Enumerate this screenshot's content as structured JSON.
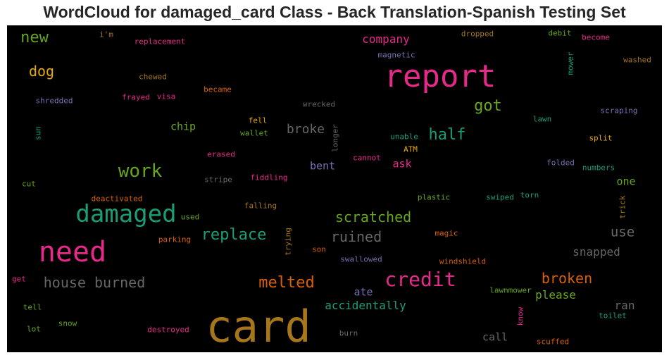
{
  "chart_data": {
    "type": "wordcloud",
    "title": "WordCloud for damaged_card Class - Back Translation-Spanish Testing Set",
    "background": "#000000",
    "words": [
      {
        "text": "card",
        "size": 62,
        "color": "#a6761d"
      },
      {
        "text": "report",
        "size": 44,
        "color": "#e7298a"
      },
      {
        "text": "need",
        "size": 40,
        "color": "#e7298a"
      },
      {
        "text": "damaged",
        "size": 34,
        "color": "#1b9e77"
      },
      {
        "text": "credit",
        "size": 28,
        "color": "#e7298a"
      },
      {
        "text": "work",
        "size": 26,
        "color": "#66a61e"
      },
      {
        "text": "half",
        "size": 22,
        "color": "#1b9e77"
      },
      {
        "text": "got",
        "size": 22,
        "color": "#66a61e"
      },
      {
        "text": "replace",
        "size": 22,
        "color": "#1b9e77"
      },
      {
        "text": "new",
        "size": 22,
        "color": "#66a61e"
      },
      {
        "text": "melted",
        "size": 22,
        "color": "#d95f02"
      },
      {
        "text": "house burned",
        "size": 20,
        "color": "#666666"
      },
      {
        "text": "scratched",
        "size": 20,
        "color": "#66a61e"
      },
      {
        "text": "ruined",
        "size": 20,
        "color": "#666666"
      },
      {
        "text": "broken",
        "size": 20,
        "color": "#d95f02"
      },
      {
        "text": "dog",
        "size": 20,
        "color": "#e6ab02"
      },
      {
        "text": "use",
        "size": 19,
        "color": "#666666"
      },
      {
        "text": "broke",
        "size": 18,
        "color": "#666666"
      },
      {
        "text": "company",
        "size": 16,
        "color": "#e7298a"
      },
      {
        "text": "accidentally",
        "size": 16,
        "color": "#1b9e77"
      },
      {
        "text": "please",
        "size": 16,
        "color": "#66a61e"
      },
      {
        "text": "snapped",
        "size": 16,
        "color": "#666666"
      },
      {
        "text": "ran",
        "size": 16,
        "color": "#666666"
      },
      {
        "text": "chip",
        "size": 15,
        "color": "#66a61e"
      },
      {
        "text": "bent",
        "size": 15,
        "color": "#7570b3"
      },
      {
        "text": "ask",
        "size": 15,
        "color": "#e7298a"
      },
      {
        "text": "one",
        "size": 15,
        "color": "#66a61e"
      },
      {
        "text": "ate",
        "size": 15,
        "color": "#7570b3"
      },
      {
        "text": "call",
        "size": 15,
        "color": "#666666"
      },
      {
        "text": "magnetic",
        "size": 11,
        "color": "#7570b3"
      },
      {
        "text": "dropped",
        "size": 11,
        "color": "#a6761d"
      },
      {
        "text": "debit",
        "size": 11,
        "color": "#66a61e"
      },
      {
        "text": "become",
        "size": 11,
        "color": "#e7298a"
      },
      {
        "text": "washed",
        "size": 11,
        "color": "#a6761d"
      },
      {
        "text": "mower",
        "size": 11,
        "color": "#1b9e77"
      },
      {
        "text": "i'm",
        "size": 11,
        "color": "#a6761d"
      },
      {
        "text": "replacement",
        "size": 11,
        "color": "#e7298a"
      },
      {
        "text": "chewed",
        "size": 11,
        "color": "#a6761d"
      },
      {
        "text": "became",
        "size": 11,
        "color": "#d95f02"
      },
      {
        "text": "shredded",
        "size": 11,
        "color": "#7570b3"
      },
      {
        "text": "frayed",
        "size": 11,
        "color": "#e7298a"
      },
      {
        "text": "visa",
        "size": 11,
        "color": "#e7298a"
      },
      {
        "text": "wrecked",
        "size": 11,
        "color": "#666666"
      },
      {
        "text": "scraping",
        "size": 11,
        "color": "#7570b3"
      },
      {
        "text": "lawn",
        "size": 11,
        "color": "#1b9e77"
      },
      {
        "text": "fell",
        "size": 11,
        "color": "#e6ab02"
      },
      {
        "text": "wallet",
        "size": 11,
        "color": "#66a61e"
      },
      {
        "text": "sun",
        "size": 11,
        "color": "#1b9e77"
      },
      {
        "text": "longer",
        "size": 11,
        "color": "#666666"
      },
      {
        "text": "unable",
        "size": 11,
        "color": "#1b9e77"
      },
      {
        "text": "split",
        "size": 11,
        "color": "#e6ab02"
      },
      {
        "text": "erased",
        "size": 11,
        "color": "#e7298a"
      },
      {
        "text": "cannot",
        "size": 11,
        "color": "#e7298a"
      },
      {
        "text": "ATM",
        "size": 11,
        "color": "#e6ab02"
      },
      {
        "text": "folded",
        "size": 11,
        "color": "#7570b3"
      },
      {
        "text": "numbers",
        "size": 11,
        "color": "#1b9e77"
      },
      {
        "text": "stripe",
        "size": 11,
        "color": "#666666"
      },
      {
        "text": "fiddling",
        "size": 11,
        "color": "#e7298a"
      },
      {
        "text": "cut",
        "size": 11,
        "color": "#66a61e"
      },
      {
        "text": "deactivated",
        "size": 11,
        "color": "#d95f02"
      },
      {
        "text": "plastic",
        "size": 11,
        "color": "#66a61e"
      },
      {
        "text": "swiped",
        "size": 11,
        "color": "#1b9e77"
      },
      {
        "text": "torn",
        "size": 11,
        "color": "#1b9e77"
      },
      {
        "text": "trick",
        "size": 11,
        "color": "#a6761d"
      },
      {
        "text": "falling",
        "size": 11,
        "color": "#a6761d"
      },
      {
        "text": "used",
        "size": 11,
        "color": "#66a61e"
      },
      {
        "text": "trying",
        "size": 11,
        "color": "#a6761d"
      },
      {
        "text": "magic",
        "size": 11,
        "color": "#d95f02"
      },
      {
        "text": "parking",
        "size": 11,
        "color": "#d95f02"
      },
      {
        "text": "son",
        "size": 11,
        "color": "#d95f02"
      },
      {
        "text": "swallowed",
        "size": 11,
        "color": "#7570b3"
      },
      {
        "text": "windshield",
        "size": 11,
        "color": "#d95f02"
      },
      {
        "text": "get",
        "size": 11,
        "color": "#e7298a"
      },
      {
        "text": "lawnmower",
        "size": 11,
        "color": "#66a61e"
      },
      {
        "text": "tell",
        "size": 11,
        "color": "#66a61e"
      },
      {
        "text": "know",
        "size": 11,
        "color": "#e7298a"
      },
      {
        "text": "toilet",
        "size": 11,
        "color": "#1b9e77"
      },
      {
        "text": "snow",
        "size": 11,
        "color": "#66a61e"
      },
      {
        "text": "lot",
        "size": 11,
        "color": "#66a61e"
      },
      {
        "text": "destroyed",
        "size": 11,
        "color": "#e7298a"
      },
      {
        "text": "burn",
        "size": 11,
        "color": "#666666"
      },
      {
        "text": "scuffed",
        "size": 11,
        "color": "#d95f02"
      }
    ]
  }
}
